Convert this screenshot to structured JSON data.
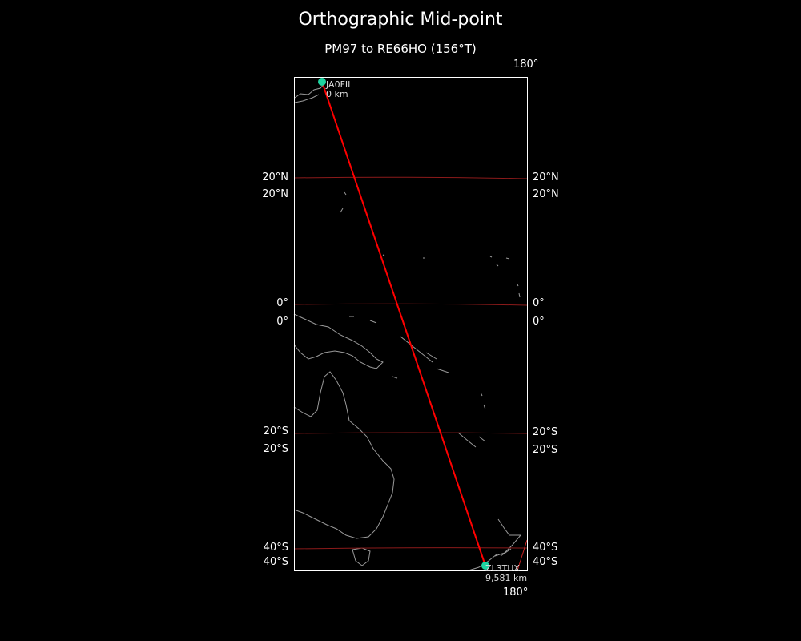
{
  "title": "Orthographic Mid-point",
  "subtitle": "PM97 to RE66HO (156°T)",
  "colors": {
    "background": "#000000",
    "path": "#ff0000",
    "graticule": "#8b1a1a",
    "station": "#1dd3a0",
    "coast": "#9a9a9a",
    "frame": "#ffffff"
  },
  "meridian_labels": {
    "top": "180°",
    "bottom": "180°"
  },
  "latitude_labels": {
    "left": [
      "20°N",
      "20°N",
      "0°",
      "0°",
      "20°S",
      "20°S",
      "40°S",
      "40°S"
    ],
    "right": [
      "20°N",
      "20°N",
      "0°",
      "0°",
      "20°S",
      "20°S",
      "40°S",
      "40°S"
    ]
  },
  "stations": [
    {
      "call": "JA0FIL",
      "distance": "0 km"
    },
    {
      "call": "ZL3TUX",
      "distance": "9,581 km"
    }
  ]
}
